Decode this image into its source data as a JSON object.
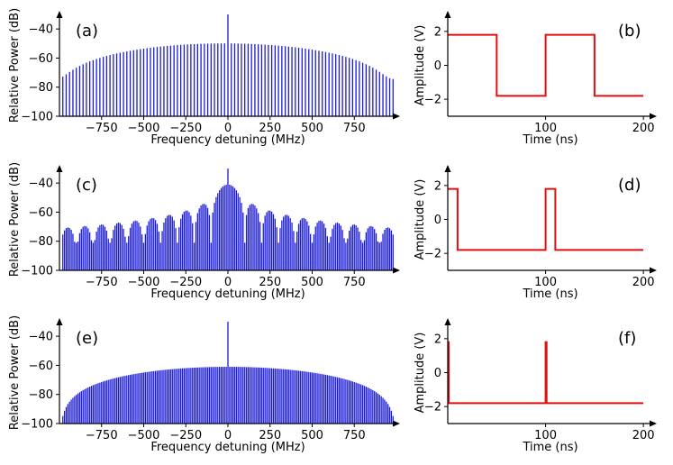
{
  "colors": {
    "spectrum": "#1a1adb",
    "pulse": "#e01010",
    "axis": "#000000"
  },
  "chart_data": [
    {
      "id": "a",
      "type": "bar",
      "label": "(a)",
      "xlabel": "Frequency detuning (MHz)",
      "ylabel": "Relative Power (dB)",
      "xlim": [
        -1000,
        1000
      ],
      "ylim": [
        -100,
        -30
      ],
      "xticks": [
        -750,
        -500,
        -250,
        0,
        250,
        500,
        750
      ],
      "xtick_labels": [
        "−750",
        "−500",
        "−250",
        "0",
        "250",
        "500",
        "750"
      ],
      "yticks": [
        -100,
        -80,
        -60,
        -40
      ],
      "ytick_labels": [
        "−100",
        "−80",
        "−60",
        "−40"
      ],
      "spacing_mhz": 20,
      "peak_db": -30,
      "duty_cycle": 0.5,
      "period_ns": 100,
      "floor_db": -100
    },
    {
      "id": "c",
      "type": "bar",
      "label": "(c)",
      "xlabel": "Frequency detuning (MHz)",
      "ylabel": "Relative Power (dB)",
      "xlim": [
        -1000,
        1000
      ],
      "ylim": [
        -100,
        -30
      ],
      "xticks": [
        -750,
        -500,
        -250,
        0,
        250,
        500,
        750
      ],
      "xtick_labels": [
        "−750",
        "−500",
        "−250",
        "0",
        "250",
        "500",
        "750"
      ],
      "yticks": [
        -100,
        -80,
        -60,
        -40
      ],
      "ytick_labels": [
        "−100",
        "−80",
        "−60",
        "−40"
      ],
      "spacing_mhz": 10,
      "peak_db": -30,
      "duty_cycle": 0.1,
      "period_ns": 100,
      "floor_db": -100
    },
    {
      "id": "e",
      "type": "bar",
      "label": "(e)",
      "xlabel": "Frequency detuning (MHz)",
      "ylabel": "Relative Power (dB)",
      "xlim": [
        -1000,
        1000
      ],
      "ylim": [
        -100,
        -30
      ],
      "xticks": [
        -750,
        -500,
        -250,
        0,
        250,
        500,
        750
      ],
      "xtick_labels": [
        "−750",
        "−500",
        "−250",
        "0",
        "250",
        "500",
        "750"
      ],
      "yticks": [
        -100,
        -80,
        -60,
        -40
      ],
      "ytick_labels": [
        "−100",
        "−80",
        "−60",
        "−40"
      ],
      "spacing_mhz": 10,
      "peak_db": -30,
      "duty_cycle": 0.01,
      "period_ns": 100,
      "floor_db": -100
    },
    {
      "id": "b",
      "type": "line",
      "label": "(b)",
      "xlabel": "Time (ns)",
      "ylabel": "Amplitude (V)",
      "xlim": [
        0,
        210
      ],
      "ylim": [
        -3,
        3
      ],
      "xticks": [
        100,
        200
      ],
      "xtick_labels": [
        "100",
        "200"
      ],
      "yticks": [
        -2,
        0,
        2
      ],
      "ytick_labels": [
        "−2",
        "0",
        "2"
      ],
      "points": [
        [
          0,
          1.8
        ],
        [
          50,
          1.8
        ],
        [
          50,
          -1.8
        ],
        [
          100,
          -1.8
        ],
        [
          100,
          1.8
        ],
        [
          150,
          1.8
        ],
        [
          150,
          -1.8
        ],
        [
          200,
          -1.8
        ]
      ]
    },
    {
      "id": "d",
      "type": "line",
      "label": "(d)",
      "xlabel": "Time (ns)",
      "ylabel": "Amplitude (V)",
      "xlim": [
        0,
        210
      ],
      "ylim": [
        -3,
        3
      ],
      "xticks": [
        100,
        200
      ],
      "xtick_labels": [
        "100",
        "200"
      ],
      "yticks": [
        -2,
        0,
        2
      ],
      "ytick_labels": [
        "−2",
        "0",
        "2"
      ],
      "points": [
        [
          0,
          1.8
        ],
        [
          10,
          1.8
        ],
        [
          10,
          -1.8
        ],
        [
          100,
          -1.8
        ],
        [
          100,
          1.8
        ],
        [
          110,
          1.8
        ],
        [
          110,
          -1.8
        ],
        [
          200,
          -1.8
        ]
      ]
    },
    {
      "id": "f",
      "type": "line",
      "label": "(f)",
      "xlabel": "Time (ns)",
      "ylabel": "Amplitude (V)",
      "xlim": [
        0,
        210
      ],
      "ylim": [
        -3,
        3
      ],
      "xticks": [
        100,
        200
      ],
      "xtick_labels": [
        "100",
        "200"
      ],
      "yticks": [
        -2,
        0,
        2
      ],
      "ytick_labels": [
        "−2",
        "0",
        "2"
      ],
      "points": [
        [
          0,
          1.8
        ],
        [
          1,
          1.8
        ],
        [
          1,
          -1.8
        ],
        [
          100,
          -1.8
        ],
        [
          100,
          1.8
        ],
        [
          101,
          1.8
        ],
        [
          101,
          -1.8
        ],
        [
          200,
          -1.8
        ]
      ]
    }
  ]
}
